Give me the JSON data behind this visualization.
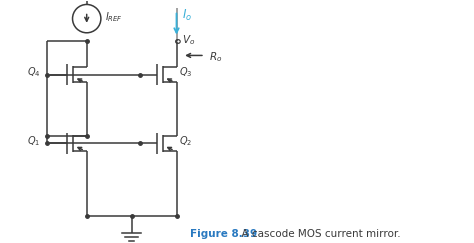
{
  "fig_width": 4.74,
  "fig_height": 2.43,
  "dpi": 100,
  "background_color": "#ffffff",
  "line_color": "#3a3a3a",
  "cyan_color": "#3ab0d8",
  "figure_label": "Figure 8.39",
  "figure_label_color": "#2979c0",
  "figure_text": "  A cascode MOS current mirror.",
  "figure_text_color": "#3a3a3a",
  "annotation_fontsize": 7.0,
  "caption_fontsize": 7.5
}
